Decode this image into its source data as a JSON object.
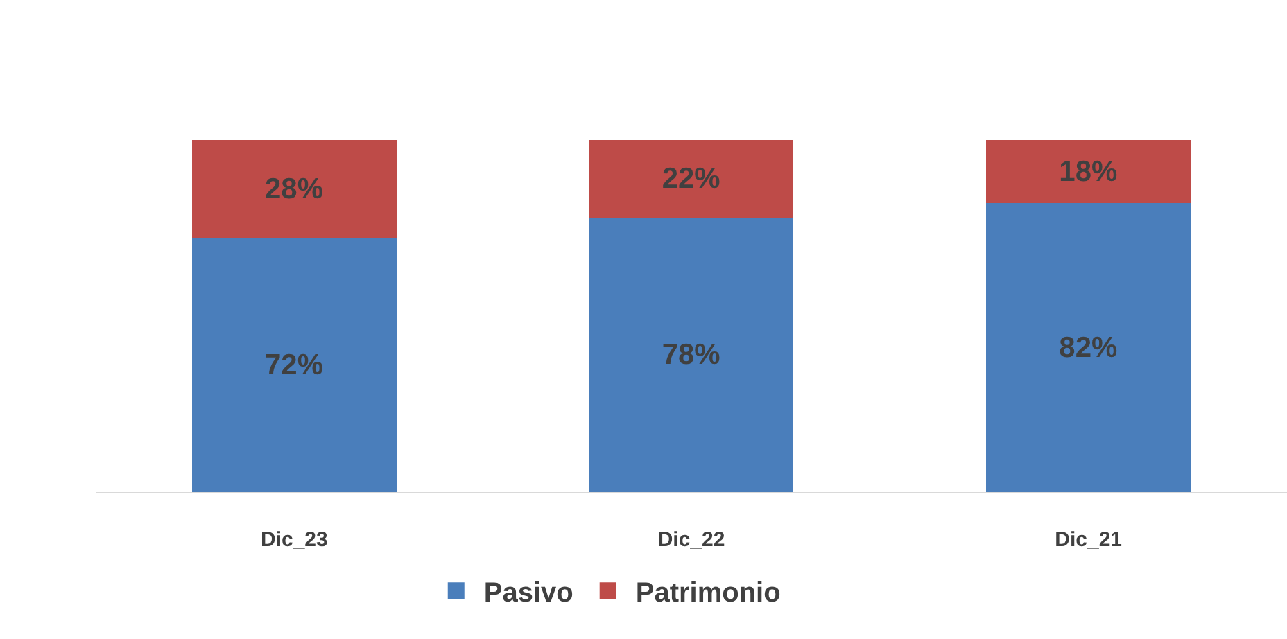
{
  "chart_data": {
    "type": "bar",
    "stacked": true,
    "categories": [
      "Dic_23",
      "Dic_22",
      "Dic_21"
    ],
    "series": [
      {
        "name": "Pasivo",
        "color": "#4a7ebb",
        "values": [
          72,
          78,
          82
        ],
        "value_labels": [
          "72%",
          "78%",
          "82%"
        ]
      },
      {
        "name": "Patrimonio",
        "color": "#be4b48",
        "values": [
          28,
          22,
          18
        ],
        "value_labels": [
          "28%",
          "22%",
          "18%"
        ]
      }
    ],
    "legend": "bottom"
  }
}
